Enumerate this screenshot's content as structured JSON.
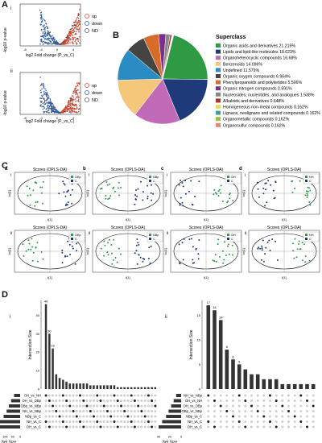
{
  "panels": {
    "A": "A",
    "B": "B",
    "C": "C",
    "D": "D",
    "Ai": "i",
    "Aii": "ii",
    "Di": "i",
    "Dii": "ii"
  },
  "volcano": {
    "ylabel": "-log10 p-value",
    "xlabel": "log2 Fold change (P_vs_C)",
    "legend": [
      "up",
      "down",
      "ND"
    ],
    "colors": {
      "up": "#e8462c",
      "down": "#2c5fb8",
      "ND": "#555555"
    },
    "ticks_x": [
      "-8",
      "-4",
      "0",
      "4"
    ],
    "ticks_y_top": [
      "0",
      "2",
      "4",
      "6"
    ],
    "ticks_y_bottom": [
      "0",
      "2",
      "4"
    ]
  },
  "superclass": {
    "title": "Superclass",
    "entries": [
      {
        "label": "Organic acids and derivatives 21.215%",
        "value": 21.215,
        "color": "#2e9b44"
      },
      {
        "label": "Lipids and lipid-like molecules 18.623%",
        "value": 18.623,
        "color": "#1e3a78"
      },
      {
        "label": "Organoheterocyclic compounds 16.68%",
        "value": 16.68,
        "color": "#c06ab8"
      },
      {
        "label": "Benzenoids 14.096%",
        "value": 14.096,
        "color": "#f4c77b"
      },
      {
        "label": "Undefined 11.579%",
        "value": 11.579,
        "color": "#2b8cc4"
      },
      {
        "label": "Organic oxygen compounds 6.964%",
        "value": 6.964,
        "color": "#444444"
      },
      {
        "label": "Phenylpropanoids and polyketides 5.506%",
        "value": 5.506,
        "color": "#d76b2a"
      },
      {
        "label": "Organic nitrogen compounds 2.591%",
        "value": 2.591,
        "color": "#7a2f8a"
      },
      {
        "label": "Nucleosides, nucleotides, and analogues 1.538%",
        "value": 1.538,
        "color": "#888888"
      },
      {
        "label": "Alkaloids and derivatives 0.648%",
        "value": 0.648,
        "color": "#b03030"
      },
      {
        "label": "Homogeneous non-metal compounds 0.162%",
        "value": 0.162,
        "color": "#e8e05a"
      },
      {
        "label": "Lignans, neolignans and related compounds 0.162%",
        "value": 0.162,
        "color": "#40a0a0"
      },
      {
        "label": "Organometallic compounds 0.162%",
        "value": 0.162,
        "color": "#a0c040"
      },
      {
        "label": "Organosulfur compounds 0.162%",
        "value": 0.162,
        "color": "#f08080"
      }
    ]
  },
  "opls": {
    "title": "Scores (OPLS-DA)",
    "xlabel": "t[1]",
    "ylabel": "to[1]",
    "group_color": "#2e9b44",
    "control_color": "#1e3a78",
    "cols": [
      {
        "tag": "a",
        "legend": [
          "OBp",
          "C"
        ]
      },
      {
        "tag": "b",
        "legend": [
          "NBp",
          "C"
        ]
      },
      {
        "tag": "c",
        "legend": [
          "OH",
          "C"
        ]
      },
      {
        "tag": "d",
        "legend": [
          "NH",
          "C"
        ]
      }
    ],
    "rows": [
      "i",
      "ii"
    ]
  },
  "upset": {
    "ylabel": "Intersection Size",
    "set_size_label": "Set Size",
    "left": {
      "bars": [
        46,
        30,
        22,
        8,
        6,
        5,
        4,
        3,
        3,
        3,
        3,
        3,
        3,
        2,
        2,
        2,
        2,
        2,
        2,
        2,
        2,
        1,
        1,
        1,
        1,
        1,
        1,
        1,
        1,
        1,
        1,
        1,
        1
      ],
      "labelled": {
        "0": "46",
        "1": "30",
        "2": "22"
      },
      "sets": [
        "OH_vs_NH",
        "OH_vs_OBp",
        "OBp_vs_NBp",
        "NH_vs_NBp",
        "NBp_vs_C",
        "NH_vs_C",
        "OH_vs_C"
      ],
      "set_sizes": [
        40,
        60,
        75,
        90,
        110,
        135,
        150
      ],
      "set_axis": [
        "150",
        "100",
        "50",
        "0"
      ],
      "y_ticks": [
        "0",
        "10",
        "20",
        "30",
        "40"
      ]
    },
    "right": {
      "bars": [
        17,
        16,
        14,
        8,
        6,
        5,
        4,
        3,
        3,
        2,
        2,
        2,
        1,
        1,
        1,
        1,
        1,
        1
      ],
      "labelled": {
        "0": "17",
        "1": "16",
        "2": "14",
        "3": "8",
        "4": "6",
        "5": "5"
      },
      "sets": [
        "NH_vs_NBp",
        "OH_vs_NH",
        "OH_vs_OBp",
        "OBp_vs_NBp",
        "NBp_vs_C",
        "NH_vs_C",
        "OH_vs_C"
      ],
      "set_sizes": [
        10,
        15,
        20,
        25,
        30,
        38,
        45
      ],
      "set_axis": [
        "40",
        "20",
        "0"
      ],
      "y_ticks": [
        "0",
        "5",
        "10",
        "15"
      ]
    }
  }
}
